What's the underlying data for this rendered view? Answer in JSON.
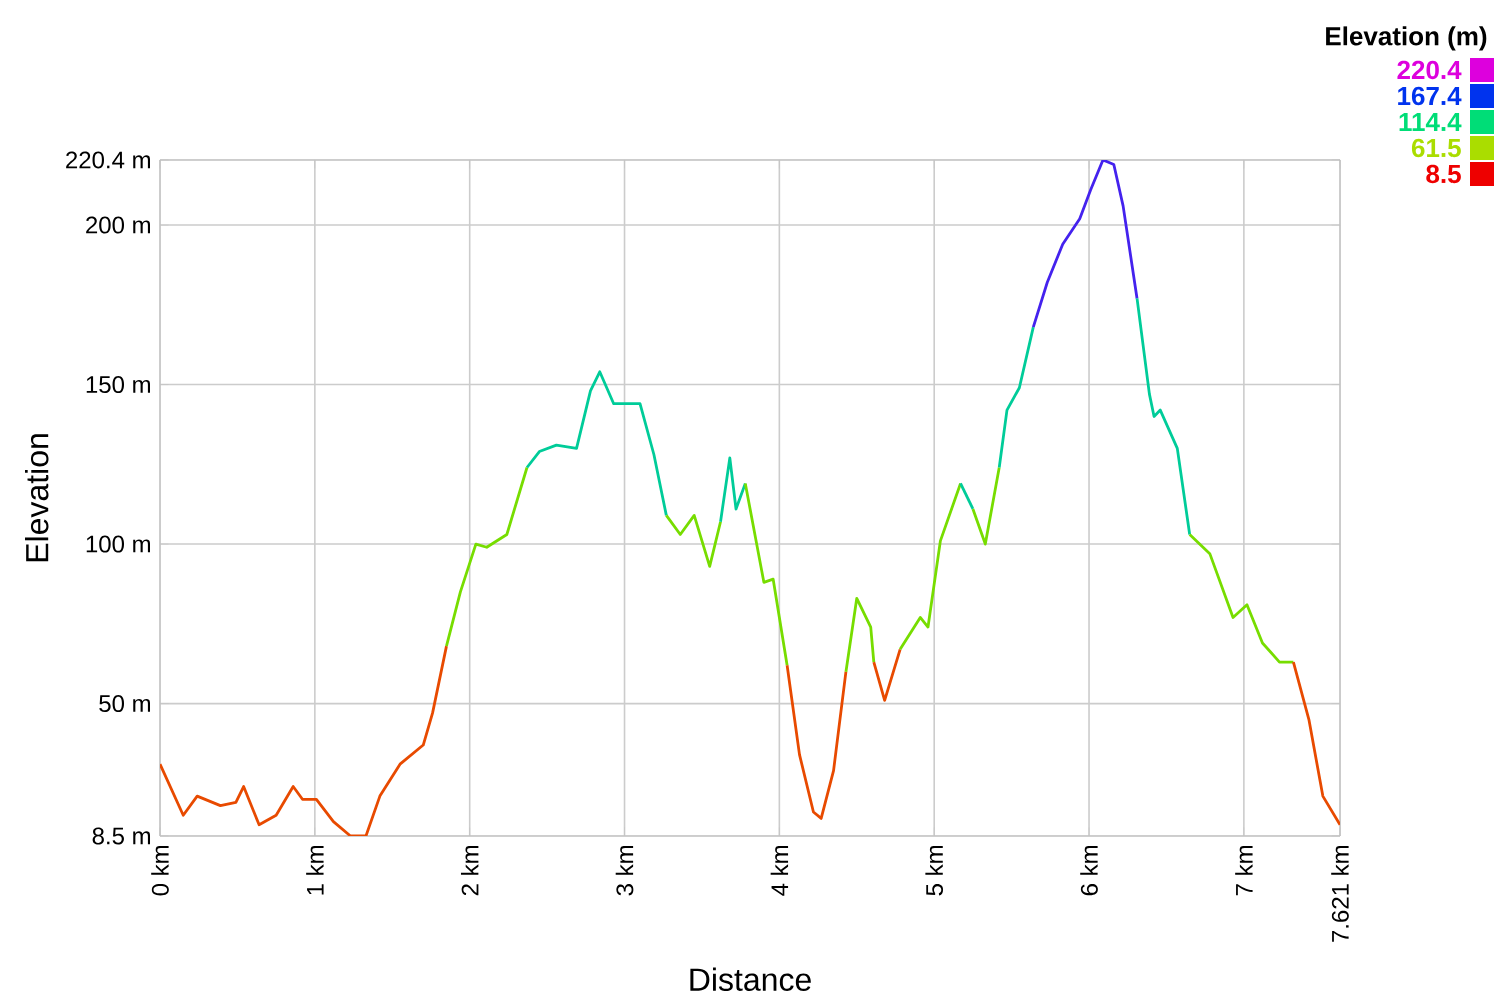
{
  "chart_data": {
    "type": "line",
    "xlabel": "Distance",
    "ylabel": "Elevation",
    "series": [
      {
        "color": "#e84a00",
        "x": [
          0,
          0.15,
          0.24,
          0.39,
          0.49,
          0.54,
          0.64,
          0.75,
          0.86,
          0.92,
          1.01,
          1.12,
          1.23,
          1.33,
          1.42,
          1.55,
          1.7,
          1.76,
          1.85
        ],
        "values": [
          31,
          15,
          21,
          18,
          19,
          24,
          12,
          15,
          24,
          20,
          20,
          13,
          8.5,
          8.5,
          21,
          31,
          37,
          47,
          68
        ]
      },
      {
        "color": "#77dd00",
        "x": [
          1.85,
          1.94,
          2.04,
          2.11,
          2.24,
          2.37
        ],
        "values": [
          68,
          85,
          100,
          99,
          103,
          124
        ]
      },
      {
        "color": "#00cc99",
        "x": [
          2.37,
          2.45,
          2.56,
          2.69,
          2.78,
          2.84,
          2.93,
          3.1,
          3.19,
          3.27
        ],
        "values": [
          124,
          129,
          131,
          130,
          148,
          154,
          144,
          144,
          128,
          109
        ]
      },
      {
        "color": "#77dd00",
        "x": [
          3.27,
          3.36,
          3.45,
          3.55,
          3.62
        ],
        "values": [
          109,
          103,
          109,
          93,
          107
        ]
      },
      {
        "color": "#00cc99",
        "x": [
          3.62,
          3.68,
          3.72,
          3.78
        ],
        "values": [
          107,
          127,
          111,
          119
        ]
      },
      {
        "color": "#77dd00",
        "x": [
          3.78,
          3.9,
          3.96,
          4.05
        ],
        "values": [
          119,
          88,
          89,
          62
        ]
      },
      {
        "color": "#e84a00",
        "x": [
          4.05,
          4.13,
          4.22,
          4.27,
          4.35,
          4.43
        ],
        "values": [
          62,
          34,
          16,
          14,
          29,
          60
        ]
      },
      {
        "color": "#77dd00",
        "x": [
          4.43,
          4.5,
          4.59,
          4.61
        ],
        "values": [
          60,
          83,
          74,
          63
        ]
      },
      {
        "color": "#e84a00",
        "x": [
          4.61,
          4.68,
          4.78
        ],
        "values": [
          63,
          51,
          67
        ]
      },
      {
        "color": "#77dd00",
        "x": [
          4.78,
          4.91,
          4.96,
          5.04,
          5.17
        ],
        "values": [
          67,
          77,
          74,
          101,
          119
        ]
      },
      {
        "color": "#00cc99",
        "x": [
          5.17,
          5.25
        ],
        "values": [
          119,
          111
        ]
      },
      {
        "color": "#77dd00",
        "x": [
          5.25,
          5.33,
          5.42
        ],
        "values": [
          111,
          100,
          124
        ]
      },
      {
        "color": "#00cc99",
        "x": [
          5.42,
          5.47,
          5.55,
          5.64
        ],
        "values": [
          124,
          142,
          149,
          168
        ]
      },
      {
        "color": "#4422ee",
        "x": [
          5.64,
          5.73,
          5.83,
          5.94,
          6.01,
          6.09,
          6.16,
          6.22,
          6.31
        ],
        "values": [
          168,
          182,
          194,
          202,
          211,
          220.4,
          219,
          206,
          177
        ]
      },
      {
        "color": "#00cc99",
        "x": [
          6.31,
          6.39,
          6.42,
          6.46,
          6.57,
          6.65
        ],
        "values": [
          177,
          147,
          140,
          142,
          130,
          103
        ]
      },
      {
        "color": "#77dd00",
        "x": [
          6.65,
          6.78,
          6.93,
          7.02,
          7.12,
          7.23,
          7.32
        ],
        "values": [
          103,
          97,
          77,
          81,
          69,
          63,
          63
        ]
      },
      {
        "color": "#e84a00",
        "x": [
          7.32,
          7.42,
          7.51,
          7.621
        ],
        "values": [
          63,
          45,
          21,
          12
        ]
      }
    ],
    "xlim": [
      0,
      7.621
    ],
    "ylim": [
      8.5,
      220.4
    ],
    "xticks": [
      {
        "value": 0,
        "label": "0 km"
      },
      {
        "value": 1,
        "label": "1 km"
      },
      {
        "value": 2,
        "label": "2 km"
      },
      {
        "value": 3,
        "label": "3 km"
      },
      {
        "value": 4,
        "label": "4 km"
      },
      {
        "value": 5,
        "label": "5 km"
      },
      {
        "value": 6,
        "label": "6 km"
      },
      {
        "value": 7,
        "label": "7 km"
      },
      {
        "value": 7.621,
        "label": "7.621 km"
      }
    ],
    "yticks": [
      {
        "value": 8.5,
        "label": "8.5 m"
      },
      {
        "value": 50,
        "label": "50 m"
      },
      {
        "value": 100,
        "label": "100 m"
      },
      {
        "value": 150,
        "label": "150 m"
      },
      {
        "value": 200,
        "label": "200 m"
      },
      {
        "value": 220.4,
        "label": "220.4 m"
      }
    ],
    "grid": true,
    "clabel": "Elevation (m)",
    "clim": [
      8.5,
      220.4
    ],
    "cticks": [
      8.5,
      61.5,
      114.4,
      167.4,
      220.4
    ]
  }
}
